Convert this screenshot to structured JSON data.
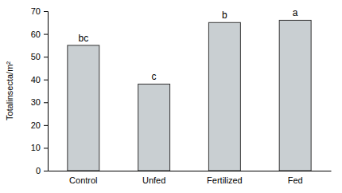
{
  "chart_data": {
    "type": "bar",
    "y_label": "Totalinsecta/m²",
    "categories": [
      "Control",
      "Unfed",
      "Fertilized",
      "Fed"
    ],
    "values": [
      55,
      38,
      65,
      66
    ],
    "annotations": [
      "bc",
      "c",
      "b",
      "a"
    ],
    "color": "#c9cfd2",
    "ylim": [
      0,
      70
    ],
    "yticks": [
      0,
      10,
      20,
      30,
      40,
      50,
      60,
      70
    ],
    "grid": false
  }
}
